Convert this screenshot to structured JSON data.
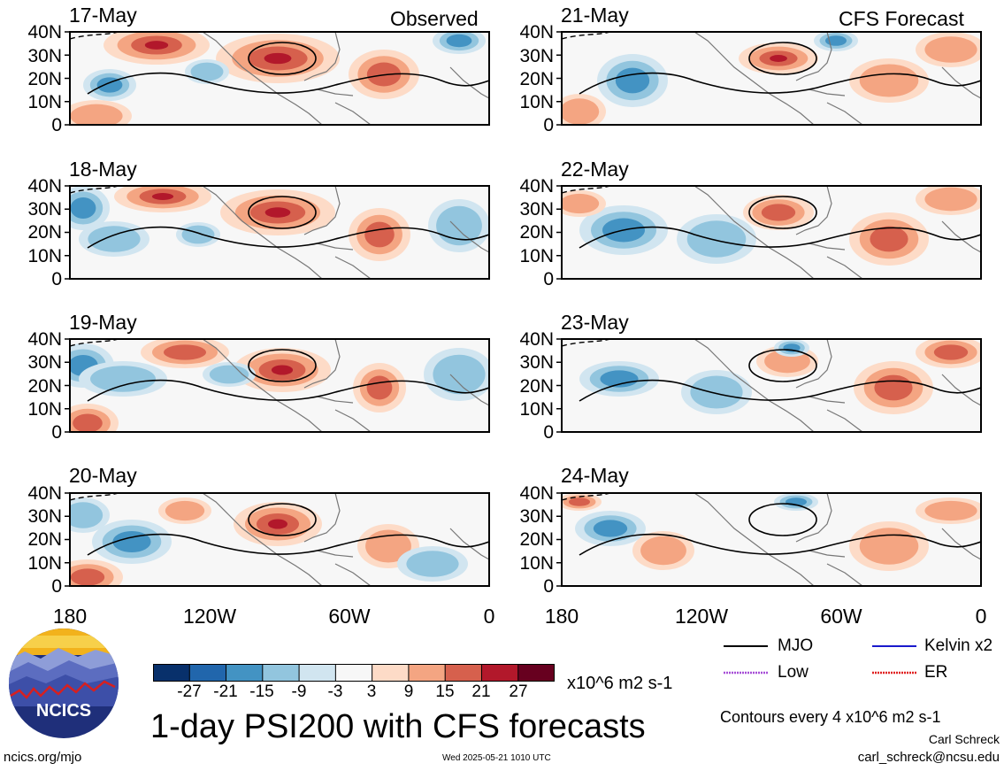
{
  "figure": {
    "title": "1-day PSI200 with CFS forecasts",
    "observed_label": "Observed",
    "forecast_label": "CFS Forecast"
  },
  "panels": {
    "observed": [
      {
        "date": "17-May"
      },
      {
        "date": "18-May"
      },
      {
        "date": "19-May"
      },
      {
        "date": "20-May"
      }
    ],
    "forecast": [
      {
        "date": "21-May"
      },
      {
        "date": "22-May"
      },
      {
        "date": "23-May"
      },
      {
        "date": "24-May"
      }
    ]
  },
  "axes": {
    "y_ticks": [
      "40N",
      "30N",
      "20N",
      "10N",
      "0"
    ],
    "x_ticks": [
      "180",
      "120W",
      "60W",
      "0"
    ]
  },
  "colorbar": {
    "ticks": [
      "-27",
      "-21",
      "-15",
      "-9",
      "-3",
      "3",
      "9",
      "15",
      "21",
      "27"
    ],
    "units": "x10^6 m2 s-1",
    "colors": [
      "#08306b",
      "#2166ac",
      "#4393c3",
      "#92c5de",
      "#d1e5f0",
      "#f7f7f7",
      "#fddbc7",
      "#f4a582",
      "#d6604d",
      "#b2182b",
      "#67001f"
    ]
  },
  "legend": {
    "items": [
      {
        "name": "MJO",
        "color": "#000000"
      },
      {
        "name": "Kelvin x2",
        "color": "#1a1acc"
      },
      {
        "name": "Low",
        "color": "#a64dd6"
      },
      {
        "name": "ER",
        "color": "#e02020"
      }
    ],
    "contour_note": "Contours every 4 x10^6 m2 s-1"
  },
  "footer": {
    "url": "ncics.org/mjo",
    "timestamp": "Wed 2025-05-21 1010 UTC",
    "author": "Carl Schreck",
    "email": "carl_schreck@ncsu.edu",
    "logo_text": "NCICS"
  }
}
